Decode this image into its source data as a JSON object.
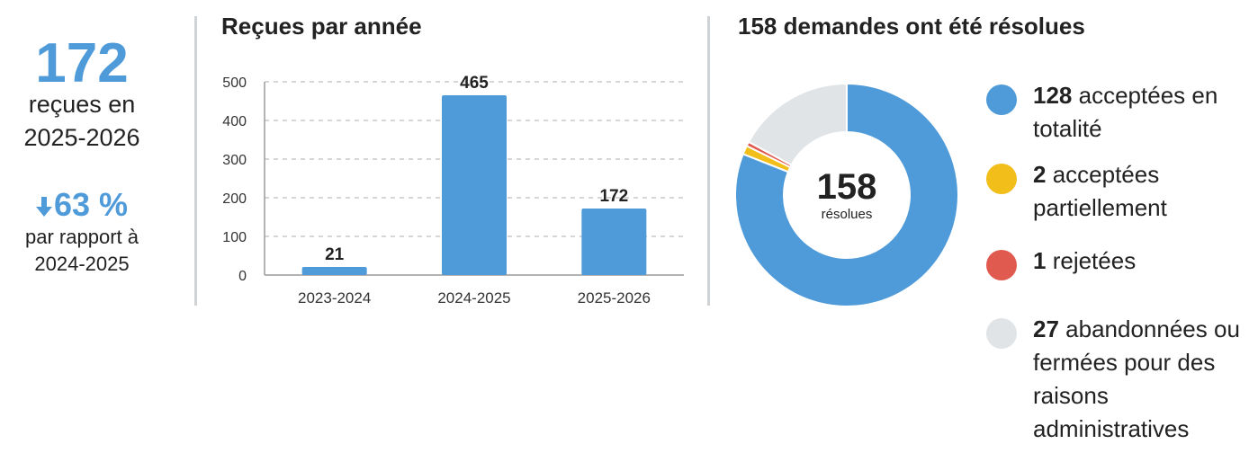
{
  "summary": {
    "received_count": "172",
    "received_label_line1": "reçues en",
    "received_label_line2": "2025-2026",
    "change_value": "63 %",
    "change_direction": "down",
    "change_label_line1": "par rapport à",
    "change_label_line2": "2024-2025"
  },
  "bar_section_title": "Reçues par année",
  "donut_section_title": "158 demandes ont été résolues",
  "donut_center": {
    "value": "158",
    "label": "résolues"
  },
  "legend": [
    {
      "count": "128",
      "text": "acceptées en totalité",
      "color": "#4F9BD9"
    },
    {
      "count": "2",
      "text": "acceptées partiellement",
      "color": "#F1BE1A"
    },
    {
      "count": "1",
      "text": "rejetées",
      "color": "#E05A50"
    },
    {
      "count": "27",
      "text": "abandonnées ou fermées pour des raisons administratives",
      "color": "#E1E4E7"
    }
  ],
  "colors": {
    "accent": "#4F9BD9",
    "bar": "#4F9BD9",
    "grid": "#cccccc",
    "divider": "#d0d3d6"
  },
  "chart_data": [
    {
      "type": "bar",
      "title": "Reçues par année",
      "categories": [
        "2023-2024",
        "2024-2025",
        "2025-2026"
      ],
      "values": [
        21,
        465,
        172
      ],
      "data_labels": [
        "21",
        "465",
        "172"
      ],
      "yticks": [
        0,
        100,
        200,
        300,
        400,
        500
      ],
      "ylim": [
        0,
        500
      ],
      "grid": true,
      "xlabel": "",
      "ylabel": ""
    },
    {
      "type": "pie",
      "variant": "donut",
      "title": "158 demandes ont été résolues",
      "categories": [
        "acceptées en totalité",
        "acceptées partiellement",
        "rejetées",
        "abandonnées ou fermées pour des raisons administratives"
      ],
      "values": [
        128,
        2,
        1,
        27
      ],
      "colors": [
        "#4F9BD9",
        "#F1BE1A",
        "#E05A50",
        "#E1E4E7"
      ],
      "center_label": "158 résolues"
    }
  ]
}
